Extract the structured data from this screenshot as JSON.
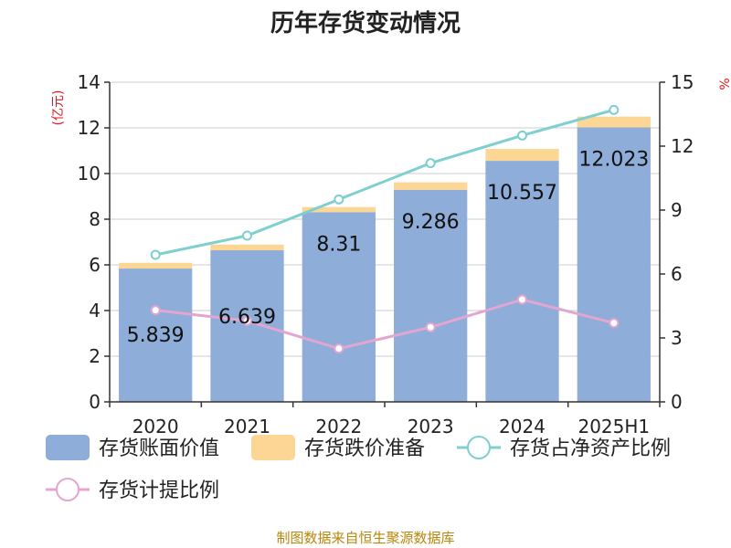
{
  "chart_data": {
    "type": "bar",
    "title": "历年存货变动情况",
    "categories": [
      "2020",
      "2021",
      "2022",
      "2023",
      "2024",
      "2025H1"
    ],
    "y_left": {
      "unit": "(亿元)",
      "range": [
        0,
        14
      ],
      "ticks": [
        "0",
        "2",
        "4",
        "6",
        "8",
        "10",
        "12",
        "14"
      ]
    },
    "y_right": {
      "unit": "%",
      "range": [
        0,
        15
      ],
      "ticks": [
        "0",
        "3",
        "6",
        "9",
        "12",
        "15"
      ]
    },
    "grid": true,
    "legend_position": "bottom",
    "series": [
      {
        "name": "存货账面价值",
        "type": "bar",
        "stack": "inventory",
        "axis": "left",
        "color": "#8eadd8",
        "values": [
          5.839,
          6.639,
          8.31,
          9.286,
          10.557,
          12.023
        ],
        "labels": [
          "5.839",
          "6.639",
          "8.31",
          "9.286",
          "10.557",
          "12.023"
        ]
      },
      {
        "name": "存货跌价准备",
        "type": "bar",
        "stack": "inventory",
        "axis": "left",
        "color": "#fcd695",
        "values": [
          0.25,
          0.25,
          0.22,
          0.33,
          0.52,
          0.47
        ]
      },
      {
        "name": "存货占净资产比例",
        "type": "line",
        "axis": "right",
        "color": "#7ecfcf",
        "values": [
          6.9,
          7.8,
          9.5,
          11.2,
          12.5,
          13.7
        ]
      },
      {
        "name": "存货计提比例",
        "type": "line",
        "axis": "right",
        "color": "#e3a6d1",
        "values": [
          4.3,
          3.8,
          2.5,
          3.5,
          4.8,
          3.7
        ]
      }
    ],
    "source": "制图数据来自恒生聚源数据库"
  }
}
